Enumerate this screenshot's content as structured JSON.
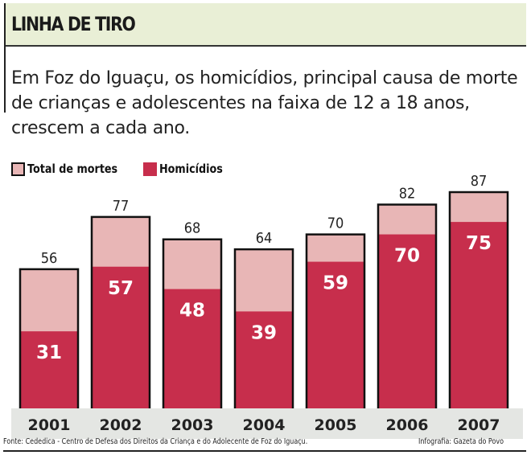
{
  "header": {
    "title": "LINHA DE TIRO"
  },
  "description": "Em Foz do Iguaçu, os homicídios, principal causa de morte de crianças e adolescentes na faixa de 12 a 18 anos, crescem a cada ano.",
  "footer": {
    "source": "Fonte: Cededica - Centro de Defesa dos Direitos da Criança e do Adolecente de Foz do Iguaçu.",
    "credit": "Infografia: Gazeta do Povo"
  },
  "colors": {
    "total": "#e8b6b6",
    "homicides": "#c72e4c",
    "year_band": "#e4e6e3",
    "header_bg": "#e9efd6"
  },
  "chart_data": {
    "type": "bar",
    "stacking": "overlay",
    "categories": [
      "2001",
      "2002",
      "2003",
      "2004",
      "2005",
      "2006",
      "2007"
    ],
    "series": [
      {
        "name": "Total de mortes",
        "values": [
          56,
          77,
          68,
          64,
          70,
          82,
          87
        ]
      },
      {
        "name": "Homicídios",
        "values": [
          31,
          57,
          48,
          39,
          59,
          70,
          75
        ]
      }
    ],
    "ylim": [
      0,
      87
    ],
    "grid": false,
    "legend": "top-left"
  }
}
